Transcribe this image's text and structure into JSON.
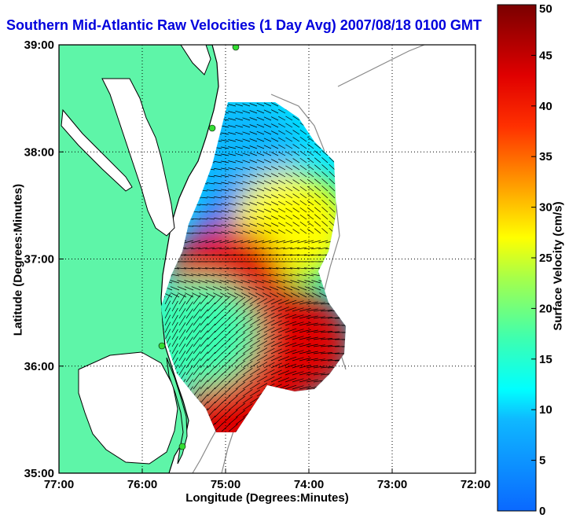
{
  "chart_data": {
    "type": "heatmap",
    "title": "Southern Mid-Atlantic Raw Velocities (1 Day Avg) 2007/08/18 0100 GMT",
    "xlabel": "Longitude (Degrees:Minutes)",
    "ylabel": "Latitude (Degrees:Minutes)",
    "colorbar_label": "Surface Velocity (cm/s)",
    "x_ticks": [
      "77:00",
      "76:00",
      "75:00",
      "74:00",
      "73:00",
      "72:00"
    ],
    "y_ticks": [
      "39:00",
      "38:00",
      "37:00",
      "36:00",
      "35:00"
    ],
    "colorbar_ticks": [
      "0",
      "5",
      "10",
      "15",
      "20",
      "25",
      "30",
      "35",
      "40",
      "45",
      "50"
    ],
    "xlim": [
      -77,
      -72
    ],
    "ylim": [
      35,
      39
    ],
    "clim": [
      0,
      50
    ],
    "grid": true,
    "regions": [
      {
        "lon": -74.8,
        "lat": 38.0,
        "speed": 10
      },
      {
        "lon": -74.7,
        "lat": 37.2,
        "speed": 7
      },
      {
        "lon": -74.2,
        "lat": 37.3,
        "speed": 30
      },
      {
        "lon": -75.0,
        "lat": 36.8,
        "speed": 45
      },
      {
        "lon": -74.2,
        "lat": 36.2,
        "speed": 48
      },
      {
        "lon": -74.8,
        "lat": 35.6,
        "speed": 46
      },
      {
        "lon": -75.3,
        "lat": 36.3,
        "speed": 20
      }
    ],
    "colors": {
      "land": "#5ef5a8",
      "coastline": "#000000",
      "bathymetry": "#888888",
      "title": "#0000dd",
      "station": "#33dd33"
    }
  }
}
